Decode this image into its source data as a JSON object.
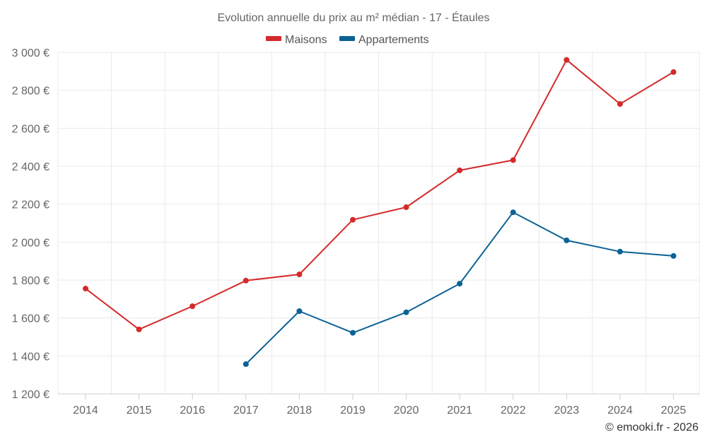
{
  "chart_data": {
    "type": "line",
    "title": "Evolution annuelle du prix au m² médian - 17 - Étaules",
    "xlabel": "",
    "ylabel": "",
    "categories": [
      "2014",
      "2015",
      "2016",
      "2017",
      "2018",
      "2019",
      "2020",
      "2021",
      "2022",
      "2023",
      "2024",
      "2025"
    ],
    "ylim": [
      1200,
      3000
    ],
    "yticks": [
      1200,
      1400,
      1600,
      1800,
      2000,
      2200,
      2400,
      2600,
      2800,
      3000
    ],
    "ytick_labels": [
      "1 200 €",
      "1 400 €",
      "1 600 €",
      "1 800 €",
      "2 000 €",
      "2 200 €",
      "2 400 €",
      "2 600 €",
      "2 800 €",
      "3 000 €"
    ],
    "grid": true,
    "legend_position": "top-center",
    "series": [
      {
        "name": "Maisons",
        "color": "#d42a2a",
        "values": [
          1755,
          1540,
          1662,
          1797,
          1830,
          2118,
          2184,
          2378,
          2432,
          2960,
          2728,
          2896
        ]
      },
      {
        "name": "Appartements",
        "color": "#0b6296",
        "values": [
          null,
          null,
          null,
          1357,
          1636,
          1522,
          1630,
          1781,
          2157,
          2009,
          1950,
          1927
        ]
      }
    ],
    "credit": "© emooki.fr - 2026"
  }
}
